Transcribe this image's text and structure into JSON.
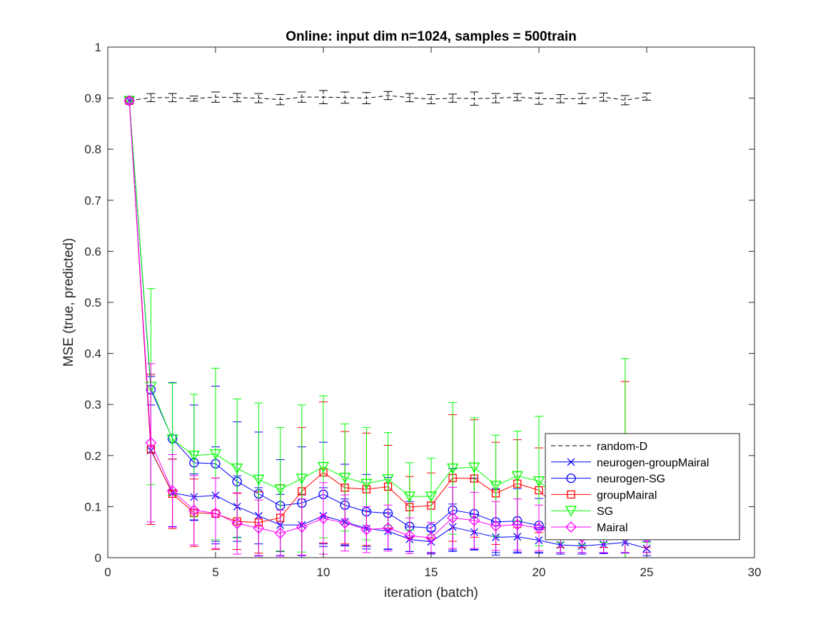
{
  "chart_data": {
    "type": "line",
    "title": "Online:  input dim n=1024, samples = 500train",
    "xlabel": "iteration (batch)",
    "ylabel": "MSE (true, predicted)",
    "xlim": [
      0,
      30
    ],
    "ylim": [
      0,
      1
    ],
    "x_ticks": [
      "0",
      "5",
      "10",
      "15",
      "20",
      "25",
      "30"
    ],
    "y_ticks": [
      "0",
      "0.1",
      "0.2",
      "0.3",
      "0.4",
      "0.5",
      "0.6",
      "0.7",
      "0.8",
      "0.9",
      "1"
    ],
    "grid": false,
    "legend_position": "bottom-right",
    "x": [
      1,
      2,
      3,
      4,
      5,
      6,
      7,
      8,
      9,
      10,
      11,
      12,
      13,
      14,
      15,
      16,
      17,
      18,
      19,
      20,
      21,
      22,
      23,
      24,
      25
    ],
    "series": [
      {
        "name": "random-D",
        "color": "#000000",
        "line_style": "dashed",
        "marker": "none",
        "values": [
          0.895,
          0.901,
          0.901,
          0.899,
          0.902,
          0.901,
          0.9,
          0.897,
          0.902,
          0.902,
          0.901,
          0.9,
          0.905,
          0.901,
          0.898,
          0.9,
          0.899,
          0.9,
          0.902,
          0.899,
          0.899,
          0.899,
          0.902,
          0.896,
          0.903
        ],
        "errors": [
          0.006,
          0.008,
          0.008,
          0.005,
          0.01,
          0.008,
          0.009,
          0.01,
          0.01,
          0.013,
          0.011,
          0.011,
          0.008,
          0.008,
          0.009,
          0.008,
          0.013,
          0.009,
          0.007,
          0.011,
          0.008,
          0.01,
          0.008,
          0.009,
          0.007
        ]
      },
      {
        "name": "neurogen-groupMairal",
        "color": "#0000ff",
        "line_style": "solid",
        "marker": "x",
        "values": [
          0.895,
          0.21,
          0.127,
          0.119,
          0.122,
          0.1,
          0.082,
          0.064,
          0.064,
          0.082,
          0.07,
          0.057,
          0.052,
          0.036,
          0.031,
          0.06,
          0.05,
          0.04,
          0.041,
          0.034,
          0.025,
          0.023,
          0.026,
          0.03,
          0.018
        ],
        "errors": [
          0.006,
          0.145,
          0.066,
          0.045,
          0.095,
          0.06,
          0.055,
          0.06,
          0.06,
          0.055,
          0.045,
          0.035,
          0.036,
          0.024,
          0.021,
          0.045,
          0.035,
          0.03,
          0.03,
          0.025,
          0.018,
          0.016,
          0.018,
          0.02,
          0.014
        ]
      },
      {
        "name": "neurogen-SG",
        "color": "#0000ff",
        "line_style": "solid",
        "marker": "circle",
        "values": [
          0.895,
          0.329,
          0.233,
          0.186,
          0.184,
          0.149,
          0.125,
          0.102,
          0.107,
          0.124,
          0.103,
          0.09,
          0.087,
          0.061,
          0.058,
          0.093,
          0.086,
          0.07,
          0.072,
          0.063,
          0.05,
          0.047,
          0.048,
          0.049,
          0.045
        ],
        "errors": [
          0.006,
          0.03,
          0.11,
          0.113,
          0.152,
          0.117,
          0.121,
          0.09,
          0.11,
          0.102,
          0.08,
          0.073,
          0.07,
          0.049,
          0.051,
          0.081,
          0.07,
          0.065,
          0.063,
          0.053,
          0.04,
          0.037,
          0.039,
          0.04,
          0.035
        ]
      },
      {
        "name": "groupMairal",
        "color": "#ff0000",
        "line_style": "solid",
        "marker": "square",
        "values": [
          0.895,
          0.212,
          0.125,
          0.088,
          0.086,
          0.071,
          0.069,
          0.078,
          0.13,
          0.167,
          0.137,
          0.134,
          0.139,
          0.099,
          0.102,
          0.156,
          0.155,
          0.126,
          0.145,
          0.132,
          0.09,
          0.085,
          0.09,
          0.095,
          0.08
        ],
        "errors": [
          0.006,
          0.147,
          0.068,
          0.066,
          0.07,
          0.055,
          0.06,
          0.065,
          0.125,
          0.138,
          0.11,
          0.11,
          0.081,
          0.06,
          0.064,
          0.124,
          0.115,
          0.1,
          0.086,
          0.083,
          0.07,
          0.065,
          0.07,
          0.25,
          0.06
        ]
      },
      {
        "name": "SG",
        "color": "#00ff00",
        "line_style": "solid",
        "marker": "triangle-down",
        "values": [
          0.895,
          0.335,
          0.232,
          0.2,
          0.203,
          0.175,
          0.153,
          0.134,
          0.155,
          0.178,
          0.157,
          0.145,
          0.154,
          0.12,
          0.12,
          0.175,
          0.177,
          0.141,
          0.16,
          0.15,
          0.11,
          0.1,
          0.11,
          0.13,
          0.1
        ],
        "errors": [
          0.006,
          0.192,
          0.11,
          0.12,
          0.168,
          0.136,
          0.15,
          0.121,
          0.144,
          0.139,
          0.105,
          0.11,
          0.091,
          0.066,
          0.075,
          0.129,
          0.097,
          0.099,
          0.088,
          0.127,
          0.08,
          0.075,
          0.08,
          0.26,
          0.07
        ]
      },
      {
        "name": "Mairal",
        "color": "#ff00ff",
        "line_style": "solid",
        "marker": "diamond",
        "values": [
          0.895,
          0.225,
          0.131,
          0.093,
          0.087,
          0.067,
          0.058,
          0.048,
          0.06,
          0.077,
          0.068,
          0.055,
          0.058,
          0.043,
          0.039,
          0.078,
          0.073,
          0.062,
          0.065,
          0.058,
          0.045,
          0.04,
          0.045,
          0.05,
          0.04
        ],
        "errors": [
          0.006,
          0.155,
          0.071,
          0.068,
          0.069,
          0.06,
          0.055,
          0.045,
          0.055,
          0.07,
          0.055,
          0.045,
          0.045,
          0.035,
          0.03,
          0.06,
          0.055,
          0.048,
          0.05,
          0.045,
          0.035,
          0.03,
          0.035,
          0.04,
          0.03
        ]
      }
    ]
  }
}
